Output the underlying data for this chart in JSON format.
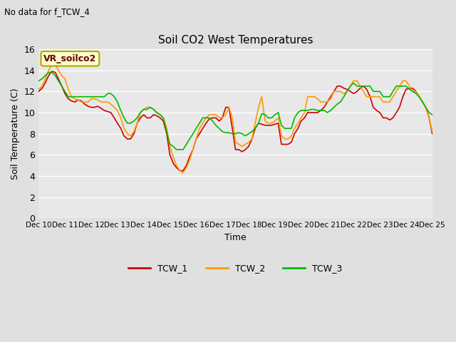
{
  "title": "Soil CO2 West Temperatures",
  "subtitle": "No data for f_TCW_4",
  "xlabel": "Time",
  "ylabel": "Soil Temperature (C)",
  "ylim": [
    0,
    16
  ],
  "xlim": [
    0,
    15
  ],
  "background_color": "#e0e0e0",
  "plot_bg_color": "#e8e8e8",
  "annotation_text": "VR_soilco2",
  "annotation_bg": "#ffffcc",
  "annotation_border": "#aaaa00",
  "xtick_labels": [
    "Dec 10",
    "Dec 11",
    "Dec 12",
    "Dec 13",
    "Dec 14",
    "Dec 15",
    "Dec 16",
    "Dec 17",
    "Dec 18",
    "Dec 19",
    "Dec 20",
    "Dec 21",
    "Dec 22",
    "Dec 23",
    "Dec 24",
    "Dec 25"
  ],
  "ytick_values": [
    0,
    2,
    4,
    6,
    8,
    10,
    12,
    14,
    16
  ],
  "TCW_1_color": "#cc0000",
  "TCW_2_color": "#ff9900",
  "TCW_3_color": "#00bb00",
  "linewidth": 1.2,
  "TCW_1_x": [
    0.0,
    0.13,
    0.25,
    0.38,
    0.5,
    0.63,
    0.75,
    0.88,
    1.0,
    1.13,
    1.25,
    1.38,
    1.5,
    1.63,
    1.75,
    1.88,
    2.0,
    2.13,
    2.25,
    2.38,
    2.5,
    2.63,
    2.75,
    2.88,
    3.0,
    3.13,
    3.25,
    3.38,
    3.5,
    3.63,
    3.75,
    3.88,
    4.0,
    4.13,
    4.25,
    4.38,
    4.5,
    4.63,
    4.75,
    4.88,
    5.0,
    5.13,
    5.25,
    5.38,
    5.5,
    5.63,
    5.75,
    5.88,
    6.0,
    6.13,
    6.25,
    6.38,
    6.5,
    6.63,
    6.75,
    6.88,
    7.0,
    7.13,
    7.25,
    7.38,
    7.5,
    7.63,
    7.75,
    7.88,
    8.0,
    8.13,
    8.25,
    8.38,
    8.5,
    8.63,
    8.75,
    8.88,
    9.0,
    9.13,
    9.25,
    9.38,
    9.5,
    9.63,
    9.75,
    9.88,
    10.0,
    10.13,
    10.25,
    10.38,
    10.5,
    10.63,
    10.75,
    10.88,
    11.0,
    11.13,
    11.25,
    11.38,
    11.5,
    11.63,
    11.75,
    11.88,
    12.0,
    12.13,
    12.25,
    12.38,
    12.5,
    12.63,
    12.75,
    12.88,
    13.0,
    13.13,
    13.25,
    13.38,
    13.5,
    13.63,
    13.75,
    13.88,
    14.0,
    14.13,
    14.25,
    14.38,
    14.5,
    14.63,
    14.75,
    14.88,
    15.0
  ],
  "TCW_1_y": [
    12.0,
    12.3,
    12.8,
    13.5,
    13.9,
    13.8,
    13.2,
    12.5,
    11.8,
    11.3,
    11.1,
    11.0,
    11.2,
    11.1,
    10.8,
    10.6,
    10.5,
    10.5,
    10.6,
    10.4,
    10.2,
    10.1,
    10.0,
    9.5,
    9.0,
    8.5,
    7.8,
    7.5,
    7.5,
    8.0,
    9.0,
    9.5,
    9.8,
    9.5,
    9.5,
    9.8,
    9.7,
    9.5,
    9.2,
    8.0,
    6.0,
    5.2,
    4.8,
    4.5,
    4.5,
    5.0,
    5.8,
    6.5,
    7.5,
    8.0,
    8.5,
    9.0,
    9.4,
    9.5,
    9.5,
    9.2,
    9.5,
    10.5,
    10.5,
    8.5,
    6.5,
    6.5,
    6.3,
    6.5,
    6.8,
    7.5,
    8.5,
    9.0,
    8.9,
    8.8,
    8.8,
    8.8,
    8.9,
    9.0,
    7.0,
    7.0,
    7.0,
    7.2,
    8.0,
    8.5,
    9.2,
    9.5,
    10.0,
    10.0,
    10.0,
    10.0,
    10.2,
    10.5,
    11.0,
    11.5,
    12.0,
    12.5,
    12.5,
    12.3,
    12.2,
    12.0,
    11.8,
    12.0,
    12.3,
    12.5,
    12.2,
    11.5,
    10.5,
    10.2,
    10.0,
    9.5,
    9.5,
    9.3,
    9.5,
    10.0,
    10.5,
    11.5,
    12.2,
    12.3,
    12.3,
    12.0,
    11.5,
    11.0,
    10.5,
    9.5,
    8.0
  ],
  "TCW_2_x": [
    0.0,
    0.13,
    0.25,
    0.38,
    0.5,
    0.63,
    0.75,
    0.88,
    1.0,
    1.13,
    1.25,
    1.38,
    1.5,
    1.63,
    1.75,
    1.88,
    2.0,
    2.13,
    2.25,
    2.38,
    2.5,
    2.63,
    2.75,
    2.88,
    3.0,
    3.13,
    3.25,
    3.38,
    3.5,
    3.63,
    3.75,
    3.88,
    4.0,
    4.13,
    4.25,
    4.38,
    4.5,
    4.63,
    4.75,
    4.88,
    5.0,
    5.13,
    5.25,
    5.38,
    5.5,
    5.63,
    5.75,
    5.88,
    6.0,
    6.13,
    6.25,
    6.38,
    6.5,
    6.63,
    6.75,
    6.88,
    7.0,
    7.13,
    7.25,
    7.38,
    7.5,
    7.63,
    7.75,
    7.88,
    8.0,
    8.13,
    8.25,
    8.38,
    8.5,
    8.63,
    8.75,
    8.88,
    9.0,
    9.13,
    9.25,
    9.38,
    9.5,
    9.63,
    9.75,
    9.88,
    10.0,
    10.13,
    10.25,
    10.38,
    10.5,
    10.63,
    10.75,
    10.88,
    11.0,
    11.13,
    11.25,
    11.38,
    11.5,
    11.63,
    11.75,
    11.88,
    12.0,
    12.13,
    12.25,
    12.38,
    12.5,
    12.63,
    12.75,
    12.88,
    13.0,
    13.13,
    13.25,
    13.38,
    13.5,
    13.63,
    13.75,
    13.88,
    14.0,
    14.13,
    14.25,
    14.38,
    14.5,
    14.63,
    14.75,
    14.88,
    15.0
  ],
  "TCW_2_y": [
    12.2,
    12.5,
    13.2,
    14.0,
    14.5,
    14.5,
    14.0,
    13.5,
    13.2,
    12.2,
    11.5,
    11.3,
    11.2,
    11.0,
    11.0,
    11.0,
    11.3,
    11.3,
    11.2,
    11.0,
    11.0,
    11.0,
    10.8,
    10.5,
    10.2,
    9.5,
    8.5,
    8.0,
    7.8,
    8.2,
    9.0,
    10.0,
    10.3,
    10.5,
    10.5,
    10.3,
    10.0,
    9.8,
    9.5,
    8.5,
    6.8,
    5.8,
    5.0,
    4.5,
    4.3,
    4.8,
    5.5,
    6.5,
    7.5,
    8.5,
    9.0,
    9.5,
    9.8,
    9.8,
    9.8,
    9.5,
    9.5,
    9.8,
    10.5,
    9.5,
    7.2,
    7.0,
    6.8,
    7.0,
    7.2,
    7.5,
    9.0,
    10.5,
    11.5,
    9.2,
    9.0,
    9.0,
    9.2,
    9.5,
    7.8,
    7.5,
    7.5,
    7.8,
    8.5,
    9.0,
    9.5,
    10.0,
    11.5,
    11.5,
    11.5,
    11.3,
    11.0,
    11.0,
    11.0,
    11.3,
    12.0,
    12.0,
    12.0,
    11.8,
    12.0,
    12.5,
    13.0,
    13.0,
    12.5,
    12.0,
    11.5,
    11.5,
    11.5,
    11.5,
    11.5,
    11.0,
    11.0,
    11.0,
    11.5,
    12.0,
    12.5,
    13.0,
    13.0,
    12.5,
    12.0,
    12.0,
    11.5,
    11.0,
    10.5,
    9.5,
    8.2
  ],
  "TCW_3_x": [
    0.0,
    0.13,
    0.25,
    0.38,
    0.5,
    0.63,
    0.75,
    0.88,
    1.0,
    1.13,
    1.25,
    1.38,
    1.5,
    1.63,
    1.75,
    1.88,
    2.0,
    2.13,
    2.25,
    2.38,
    2.5,
    2.63,
    2.75,
    2.88,
    3.0,
    3.13,
    3.25,
    3.38,
    3.5,
    3.63,
    3.75,
    3.88,
    4.0,
    4.13,
    4.25,
    4.38,
    4.5,
    4.63,
    4.75,
    4.88,
    5.0,
    5.13,
    5.25,
    5.38,
    5.5,
    5.63,
    5.75,
    5.88,
    6.0,
    6.13,
    6.25,
    6.38,
    6.5,
    6.63,
    6.75,
    6.88,
    7.0,
    7.13,
    7.25,
    7.38,
    7.5,
    7.63,
    7.75,
    7.88,
    8.0,
    8.13,
    8.25,
    8.38,
    8.5,
    8.63,
    8.75,
    8.88,
    9.0,
    9.13,
    9.25,
    9.38,
    9.5,
    9.63,
    9.75,
    9.88,
    10.0,
    10.13,
    10.25,
    10.38,
    10.5,
    10.63,
    10.75,
    10.88,
    11.0,
    11.13,
    11.25,
    11.38,
    11.5,
    11.63,
    11.75,
    11.88,
    12.0,
    12.13,
    12.25,
    12.38,
    12.5,
    12.63,
    12.75,
    12.88,
    13.0,
    13.13,
    13.25,
    13.38,
    13.5,
    13.63,
    13.75,
    13.88,
    14.0,
    14.13,
    14.25,
    14.38,
    14.5,
    14.63,
    14.75,
    14.88,
    15.0
  ],
  "TCW_3_y": [
    13.0,
    13.2,
    13.5,
    13.8,
    13.8,
    13.5,
    13.0,
    12.5,
    12.0,
    11.5,
    11.5,
    11.5,
    11.5,
    11.5,
    11.5,
    11.5,
    11.5,
    11.5,
    11.5,
    11.5,
    11.5,
    11.8,
    11.8,
    11.5,
    11.0,
    10.2,
    9.5,
    9.0,
    9.0,
    9.2,
    9.5,
    10.0,
    10.3,
    10.3,
    10.5,
    10.3,
    10.0,
    9.8,
    9.5,
    8.2,
    7.0,
    6.8,
    6.5,
    6.5,
    6.5,
    7.0,
    7.5,
    8.0,
    8.5,
    9.0,
    9.5,
    9.5,
    9.5,
    9.2,
    8.8,
    8.5,
    8.2,
    8.1,
    8.1,
    8.0,
    8.0,
    8.1,
    8.0,
    7.8,
    8.0,
    8.2,
    8.5,
    9.0,
    9.9,
    9.8,
    9.5,
    9.5,
    9.8,
    10.0,
    8.8,
    8.5,
    8.5,
    8.5,
    9.5,
    10.0,
    10.2,
    10.2,
    10.2,
    10.3,
    10.3,
    10.2,
    10.2,
    10.2,
    10.0,
    10.2,
    10.5,
    10.8,
    11.0,
    11.5,
    12.0,
    12.5,
    12.8,
    12.5,
    12.5,
    12.5,
    12.5,
    12.5,
    12.0,
    12.0,
    12.0,
    11.5,
    11.5,
    11.5,
    12.0,
    12.5,
    12.5,
    12.5,
    12.5,
    12.2,
    12.0,
    11.8,
    11.5,
    11.0,
    10.5,
    10.0,
    9.8
  ]
}
